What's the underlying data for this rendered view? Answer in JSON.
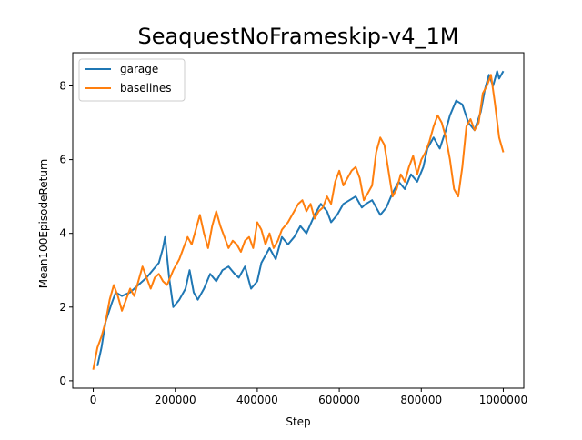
{
  "chart_data": {
    "type": "line",
    "title": "SeaquestNoFrameskip-v4_1M",
    "xlabel": "Step",
    "ylabel": "Mean100EpisodeReturn",
    "xlim": [
      -50000,
      1050000
    ],
    "ylim": [
      -0.2,
      8.9
    ],
    "xticks": [
      0,
      200000,
      400000,
      600000,
      800000,
      1000000
    ],
    "xtick_labels": [
      "0",
      "200000",
      "400000",
      "600000",
      "800000",
      "1000000"
    ],
    "yticks": [
      0,
      2,
      4,
      6,
      8
    ],
    "ytick_labels": [
      "0",
      "2",
      "4",
      "6",
      "8"
    ],
    "grid": false,
    "legend_position": "top-left",
    "series": [
      {
        "name": "garage",
        "color": "#1f77b4",
        "x": [
          10000,
          20000,
          30000,
          45000,
          55000,
          70000,
          90000,
          110000,
          130000,
          145000,
          160000,
          170000,
          175000,
          185000,
          195000,
          210000,
          225000,
          235000,
          245000,
          255000,
          270000,
          285000,
          300000,
          315000,
          330000,
          345000,
          355000,
          370000,
          385000,
          400000,
          410000,
          430000,
          445000,
          460000,
          475000,
          490000,
          505000,
          520000,
          540000,
          555000,
          570000,
          580000,
          595000,
          610000,
          625000,
          640000,
          655000,
          665000,
          680000,
          700000,
          715000,
          730000,
          745000,
          760000,
          775000,
          790000,
          805000,
          815000,
          830000,
          845000,
          860000,
          870000,
          885000,
          900000,
          915000,
          930000,
          945000,
          955000,
          965000,
          975000,
          985000,
          990000,
          1000000
        ],
        "y": [
          0.4,
          0.9,
          1.6,
          2.1,
          2.4,
          2.3,
          2.4,
          2.6,
          2.8,
          3.0,
          3.2,
          3.6,
          3.9,
          2.8,
          2.0,
          2.2,
          2.5,
          3.0,
          2.4,
          2.2,
          2.5,
          2.9,
          2.7,
          3.0,
          3.1,
          2.9,
          2.8,
          3.1,
          2.5,
          2.7,
          3.2,
          3.6,
          3.3,
          3.9,
          3.7,
          3.9,
          4.2,
          4.0,
          4.5,
          4.8,
          4.6,
          4.3,
          4.5,
          4.8,
          4.9,
          5.0,
          4.7,
          4.8,
          4.9,
          4.5,
          4.7,
          5.1,
          5.4,
          5.2,
          5.6,
          5.4,
          5.8,
          6.3,
          6.6,
          6.3,
          6.8,
          7.2,
          7.6,
          7.5,
          7.0,
          6.8,
          7.3,
          7.9,
          8.3,
          8.0,
          8.4,
          8.2,
          8.4
        ]
      },
      {
        "name": "baselines",
        "color": "#ff7f0e",
        "x": [
          0,
          10000,
          20000,
          30000,
          40000,
          50000,
          60000,
          70000,
          80000,
          90000,
          100000,
          110000,
          120000,
          130000,
          140000,
          150000,
          160000,
          170000,
          180000,
          195000,
          210000,
          220000,
          230000,
          240000,
          250000,
          260000,
          270000,
          280000,
          290000,
          300000,
          310000,
          320000,
          330000,
          340000,
          350000,
          360000,
          370000,
          380000,
          390000,
          400000,
          410000,
          420000,
          430000,
          440000,
          450000,
          460000,
          475000,
          490000,
          500000,
          510000,
          520000,
          530000,
          540000,
          550000,
          560000,
          570000,
          580000,
          590000,
          600000,
          610000,
          620000,
          630000,
          640000,
          650000,
          660000,
          670000,
          680000,
          690000,
          700000,
          710000,
          720000,
          730000,
          740000,
          750000,
          760000,
          770000,
          780000,
          790000,
          800000,
          810000,
          820000,
          830000,
          840000,
          850000,
          860000,
          870000,
          880000,
          890000,
          900000,
          910000,
          920000,
          930000,
          940000,
          950000,
          960000,
          970000,
          980000,
          990000,
          1000000
        ],
        "y": [
          0.3,
          0.9,
          1.2,
          1.6,
          2.2,
          2.6,
          2.3,
          1.9,
          2.2,
          2.5,
          2.3,
          2.7,
          3.1,
          2.8,
          2.5,
          2.8,
          2.9,
          2.7,
          2.6,
          3.0,
          3.3,
          3.6,
          3.9,
          3.7,
          4.1,
          4.5,
          4.0,
          3.6,
          4.2,
          4.6,
          4.2,
          3.9,
          3.6,
          3.8,
          3.7,
          3.5,
          3.8,
          3.9,
          3.6,
          4.3,
          4.1,
          3.7,
          4.0,
          3.6,
          3.8,
          4.1,
          4.3,
          4.6,
          4.8,
          4.9,
          4.6,
          4.8,
          4.4,
          4.6,
          4.7,
          5.0,
          4.8,
          5.4,
          5.7,
          5.3,
          5.5,
          5.7,
          5.8,
          5.5,
          4.9,
          5.1,
          5.3,
          6.2,
          6.6,
          6.4,
          5.7,
          5.0,
          5.2,
          5.6,
          5.4,
          5.8,
          6.1,
          5.6,
          6.0,
          6.2,
          6.5,
          6.9,
          7.2,
          7.0,
          6.6,
          6.0,
          5.2,
          5.0,
          5.8,
          6.9,
          7.1,
          6.8,
          7.0,
          7.8,
          8.0,
          8.3,
          7.5,
          6.6,
          6.2
        ]
      }
    ]
  }
}
